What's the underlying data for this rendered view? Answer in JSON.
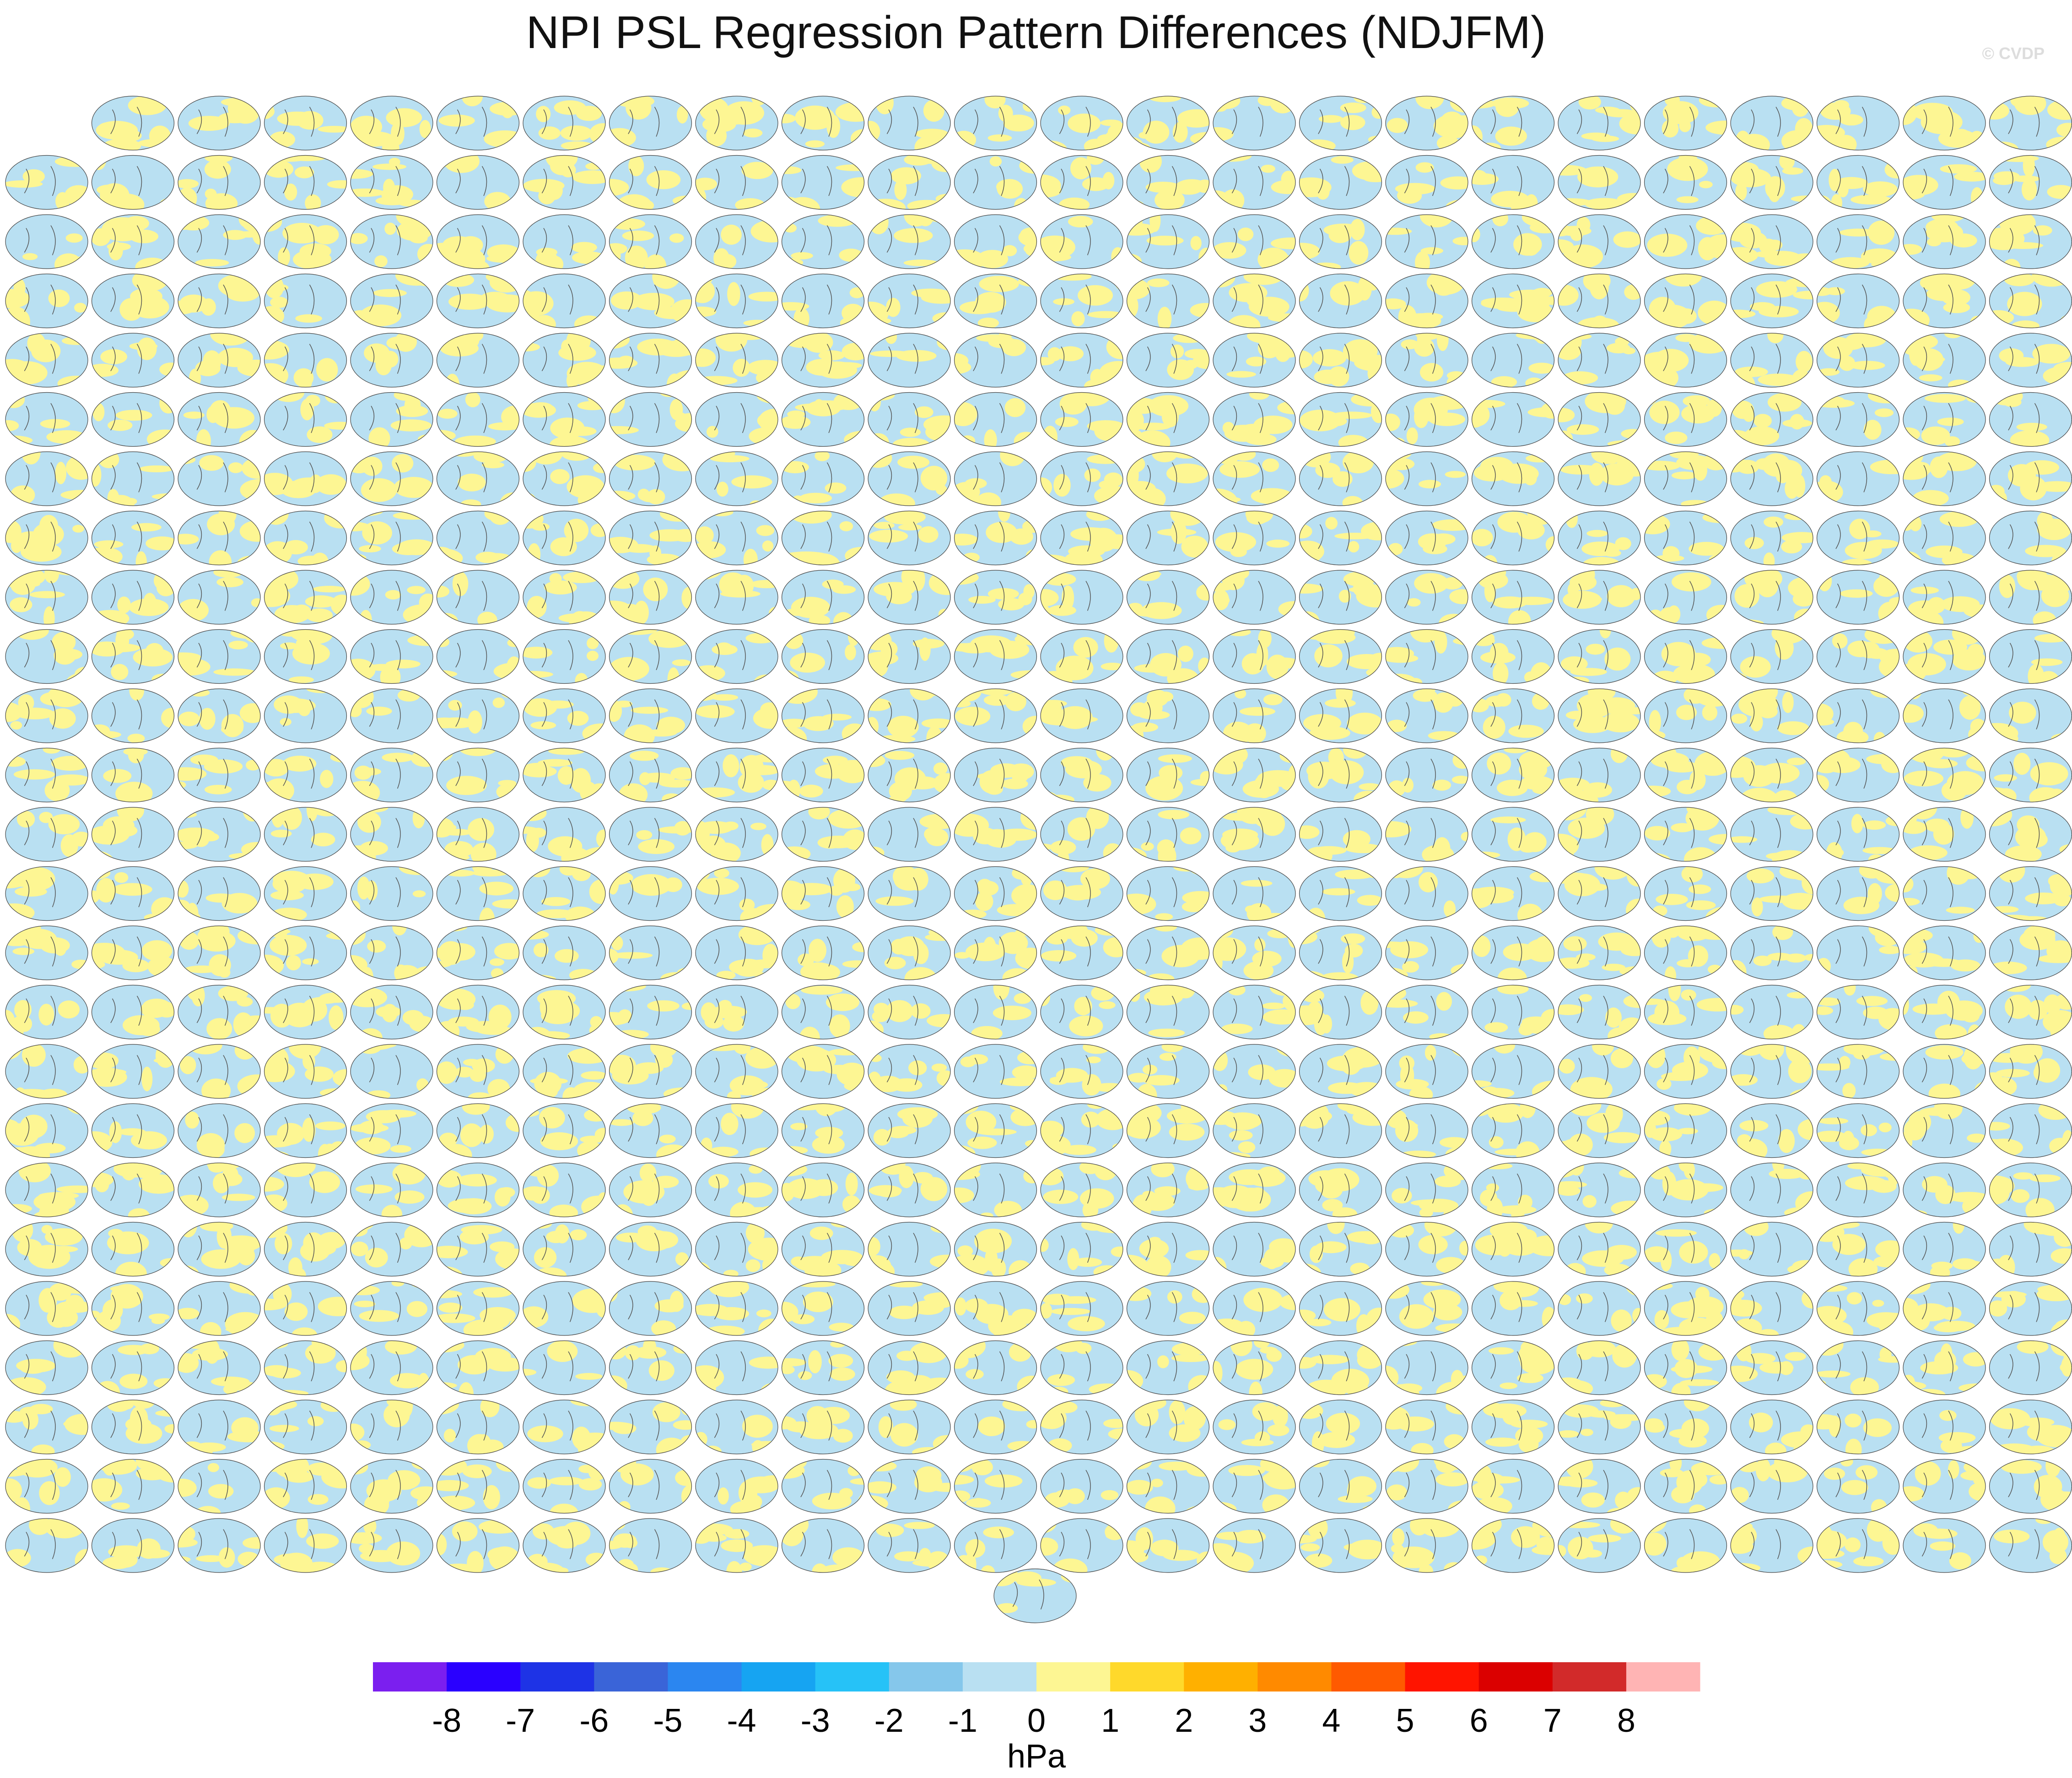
{
  "title": "NPI PSL Regression Pattern Differences (NDJFM)",
  "credit": "© CVDP",
  "chart_data": {
    "type": "heatmap",
    "title": "NPI PSL Regression Pattern Differences (NDJFM)",
    "description_of_panels": "Grid of small global map panels (regression pattern differences), mostly light blue (0 to -1) and pale yellow (0 to 1)",
    "panel_layout": {
      "rows": 25,
      "columns": 24,
      "first_row_columns": 23,
      "trailing_single_panel": true,
      "total_panels": 600
    },
    "colorbar": {
      "units": "hPa",
      "tick_labels": [
        "-8",
        "-7",
        "-6",
        "-5",
        "-4",
        "-3",
        "-2",
        "-1",
        "0",
        "1",
        "2",
        "3",
        "4",
        "5",
        "6",
        "7",
        "8"
      ],
      "levels": [
        -8,
        -7,
        -6,
        -5,
        -4,
        -3,
        -2,
        -1,
        0,
        1,
        2,
        3,
        4,
        5,
        6,
        7,
        8
      ],
      "colors": [
        "#7b1fef",
        "#2a00ff",
        "#1e33e6",
        "#3a64d8",
        "#2b86f0",
        "#16a4f2",
        "#26c2f7",
        "#85c7eb",
        "#b9e0f2",
        "#fdf693",
        "#ffd92b",
        "#ffb000",
        "#ff8a00",
        "#ff5a00",
        "#ff1400",
        "#db0000",
        "#d22a2a",
        "#ffb4b4"
      ]
    },
    "dominant_panel_colors": {
      "negative": "#b9e0f2",
      "positive": "#fdf693",
      "land_outline": "#555555"
    }
  }
}
